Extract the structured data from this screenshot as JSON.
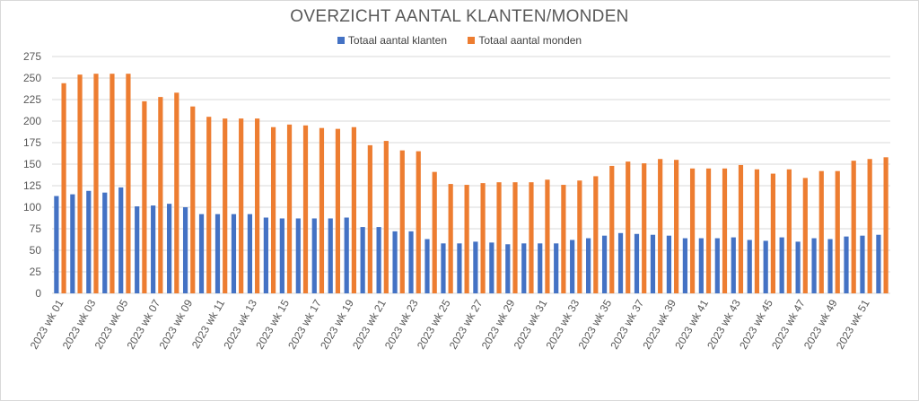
{
  "chart_data": {
    "type": "bar",
    "title": "OVERZICHT AANTAL KLANTEN/MONDEN",
    "xlabel": "",
    "ylabel": "",
    "ylim": [
      0,
      275
    ],
    "yticks": [
      0,
      25,
      50,
      75,
      100,
      125,
      150,
      175,
      200,
      225,
      250,
      275
    ],
    "grid": true,
    "legend_position": "top",
    "categories": [
      "2023 wk 01",
      "2023 wk 02",
      "2023 wk 03",
      "2023 wk 04",
      "2023 wk 05",
      "2023 wk 06",
      "2023 wk 07",
      "2023 wk 08",
      "2023 wk 09",
      "2023 wk 10",
      "2023 wk 11",
      "2023 wk 12",
      "2023 wk 13",
      "2023 wk 14",
      "2023 wk 15",
      "2023 wk 16",
      "2023 wk 17",
      "2023 wk 18",
      "2023 wk 19",
      "2023 wk 20",
      "2023 wk 21",
      "2023 wk 22",
      "2023 wk 23",
      "2023 wk 24",
      "2023 wk 25",
      "2023 wk 26",
      "2023 wk 27",
      "2023 wk 28",
      "2023 wk 29",
      "2023 wk 30",
      "2023 wk 31",
      "2023 wk 32",
      "2023 wk 33",
      "2023 wk 34",
      "2023 wk 35",
      "2023 wk 36",
      "2023 wk 37",
      "2023 wk 38",
      "2023 wk 39",
      "2023 wk 40",
      "2023 wk 41",
      "2023 wk 42",
      "2023 wk 43",
      "2023 wk 44",
      "2023 wk 45",
      "2023 wk 46",
      "2023 wk 47",
      "2023 wk 48",
      "2023 wk 49",
      "2023 wk 50",
      "2023 wk 51",
      "2023 wk 52"
    ],
    "visible_category_labels": [
      "2023 wk 01",
      "2023 wk 03",
      "2023 wk 05",
      "2023 wk 07",
      "2023 wk 09",
      "2023 wk 11",
      "2023 wk 13",
      "2023 wk 15",
      "2023 wk 17",
      "2023 wk 19",
      "2023 wk 21",
      "2023 wk 23",
      "2023 wk 25",
      "2023 wk 27",
      "2023 wk 29",
      "2023 wk 31",
      "2023 wk 33",
      "2023 wk 35",
      "2023 wk 37",
      "2023 wk 39",
      "2023 wk 41",
      "2023 wk 43",
      "2023 wk 45",
      "2023 wk 47",
      "2023 wk 49",
      "2023 wk 51"
    ],
    "series": [
      {
        "name": "Totaal aantal klanten",
        "color": "#4472c4",
        "values": [
          113,
          115,
          119,
          117,
          123,
          101,
          102,
          104,
          100,
          92,
          92,
          92,
          92,
          88,
          87,
          87,
          87,
          87,
          88,
          77,
          77,
          72,
          72,
          63,
          58,
          58,
          60,
          59,
          57,
          58,
          58,
          58,
          62,
          64,
          67,
          70,
          69,
          68,
          67,
          64,
          64,
          64,
          65,
          62,
          61,
          65,
          60,
          64,
          63,
          66,
          67,
          68
        ]
      },
      {
        "name": "Totaal aantal monden",
        "color": "#ed7d31",
        "values": [
          244,
          254,
          255,
          255,
          255,
          223,
          228,
          233,
          217,
          205,
          203,
          203,
          203,
          193,
          196,
          195,
          192,
          191,
          193,
          172,
          177,
          166,
          165,
          141,
          127,
          126,
          128,
          129,
          129,
          129,
          132,
          126,
          131,
          136,
          148,
          153,
          151,
          156,
          155,
          145,
          145,
          145,
          149,
          144,
          139,
          144,
          134,
          142,
          142,
          154,
          156,
          158
        ]
      }
    ]
  }
}
